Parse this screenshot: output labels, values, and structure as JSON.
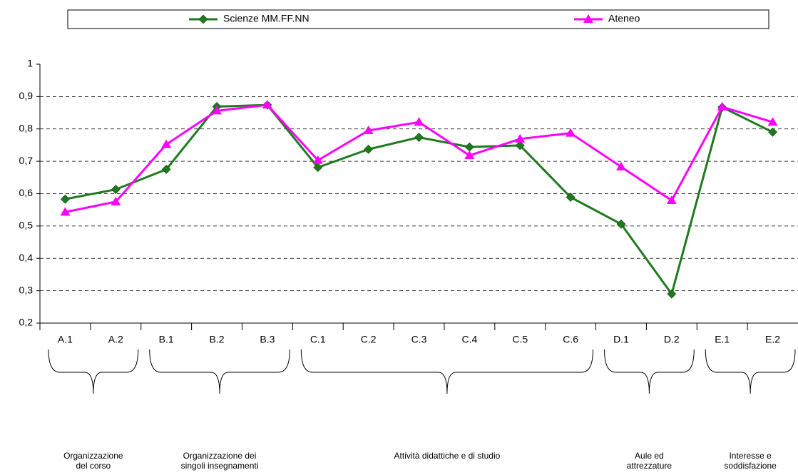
{
  "chart_data": {
    "type": "line",
    "categories": [
      "A.1",
      "A.2",
      "B.1",
      "B.2",
      "B.3",
      "C.1",
      "C.2",
      "C.3",
      "C.4",
      "C.5",
      "C.6",
      "D.1",
      "D.2",
      "E.1",
      "E.2"
    ],
    "series": [
      {
        "name": "Scienze MM.FF.NN",
        "color": "#1f7a1f",
        "marker": "diamond",
        "values": [
          0.583,
          0.613,
          0.675,
          0.869,
          0.874,
          0.681,
          0.737,
          0.774,
          0.744,
          0.749,
          0.589,
          0.506,
          0.29,
          0.867,
          0.79
        ]
      },
      {
        "name": "Ateneo",
        "color": "#ff00ff",
        "marker": "triangle",
        "values": [
          0.543,
          0.575,
          0.752,
          0.856,
          0.874,
          0.703,
          0.795,
          0.821,
          0.718,
          0.769,
          0.787,
          0.683,
          0.579,
          0.868,
          0.821
        ]
      }
    ],
    "ylim": [
      0.2,
      1
    ],
    "yticks": [
      {
        "value": 0.2,
        "label": "0,2"
      },
      {
        "value": 0.3,
        "label": "0,3"
      },
      {
        "value": 0.4,
        "label": "0,4"
      },
      {
        "value": 0.5,
        "label": "0,5"
      },
      {
        "value": 0.6,
        "label": "0,6"
      },
      {
        "value": 0.7,
        "label": "0,7"
      },
      {
        "value": 0.8,
        "label": "0,8"
      },
      {
        "value": 0.9,
        "label": "0,9"
      },
      1
    ],
    "grid": true,
    "legend": "top",
    "groups": [
      {
        "lines": [
          "Organizzazione",
          "del corso"
        ]
      },
      {
        "lines": [
          "Organizzazione dei",
          "singoli insegnamenti"
        ]
      },
      {
        "lines": [
          "Attività didattiche e di studio"
        ]
      },
      {
        "lines": [
          "Aule ed",
          "attrezzature"
        ]
      },
      {
        "lines": [
          "Interesse e",
          "soddisfazione"
        ]
      }
    ]
  }
}
